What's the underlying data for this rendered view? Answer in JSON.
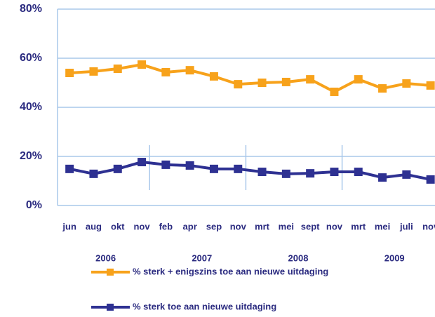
{
  "chart_data": {
    "type": "line",
    "categories": [
      "jun",
      "aug",
      "okt",
      "nov",
      "feb",
      "apr",
      "sep",
      "nov",
      "mrt",
      "mei",
      "sept",
      "nov",
      "mrt",
      "mei",
      "juli",
      "nov"
    ],
    "years": [
      "2006",
      "2007",
      "2008",
      "2009"
    ],
    "series": [
      {
        "name": "% sterk + enigszins toe aan nieuwe uitdaging",
        "color": "#f7a21b",
        "values": [
          54.0,
          54.6,
          55.7,
          57.4,
          54.3,
          55.1,
          52.6,
          49.4,
          50.0,
          50.3,
          51.4,
          46.3,
          51.4,
          47.7,
          49.7,
          48.9
        ]
      },
      {
        "name": "% sterk toe aan nieuwe uitdaging",
        "color": "#2e3192",
        "values": [
          14.9,
          12.9,
          14.9,
          17.7,
          16.6,
          16.3,
          14.9,
          14.9,
          13.7,
          12.9,
          13.1,
          13.7,
          13.7,
          11.4,
          12.6,
          10.6
        ]
      }
    ],
    "ylim": [
      0,
      80
    ],
    "yticks": [
      {
        "value": 0,
        "label": "0%"
      },
      {
        "value": 20,
        "label": "20%"
      },
      {
        "value": 40,
        "label": "40%"
      },
      {
        "value": 60,
        "label": "60%"
      },
      {
        "value": 80,
        "label": "80%"
      }
    ],
    "grid": true
  }
}
